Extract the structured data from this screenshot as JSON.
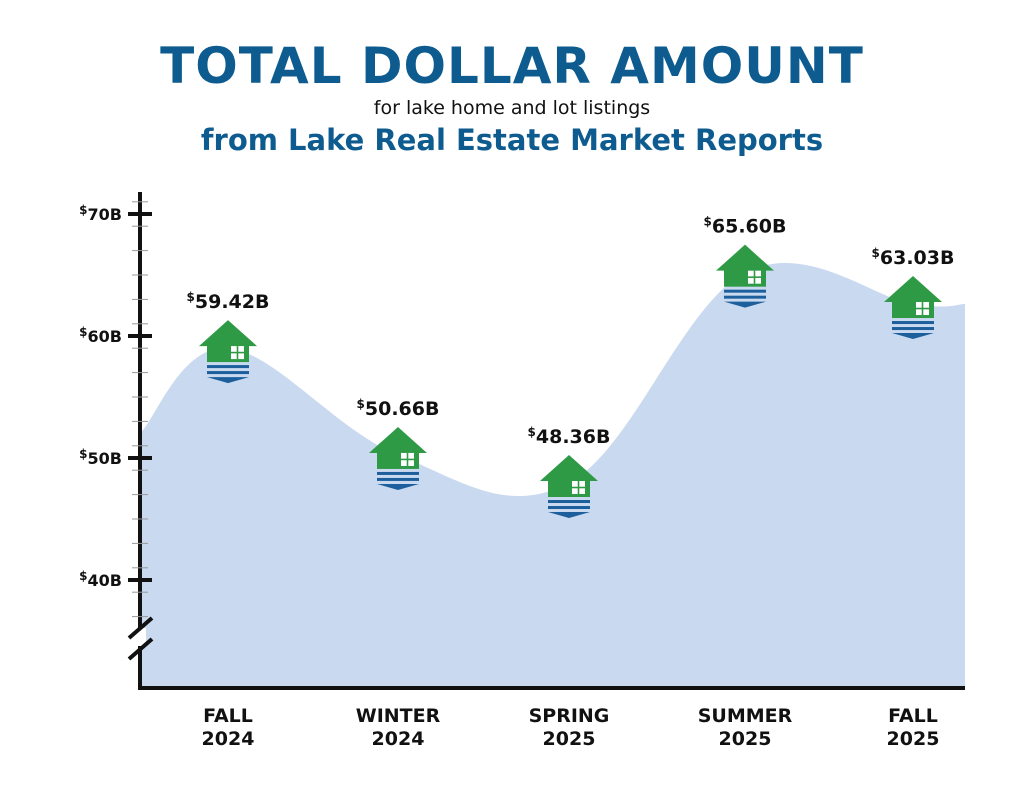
{
  "header": {
    "title": "TOTAL DOLLAR AMOUNT",
    "subtitle": "for lake home and lot listings",
    "subtitle2": "from Lake Real Estate Market Reports"
  },
  "colors": {
    "title": "#0d5b8f",
    "area_fill": "#c9d9ef",
    "house_green": "#2f9a45",
    "water_blue": "#1d5f9c",
    "axis": "#111111"
  },
  "icons": {
    "marker": "lake-house-icon"
  },
  "chart_data": {
    "type": "area",
    "title": "TOTAL DOLLAR AMOUNT",
    "categories": [
      [
        "FALL",
        "2024"
      ],
      [
        "WINTER",
        "2024"
      ],
      [
        "SPRING",
        "2025"
      ],
      [
        "SUMMER",
        "2025"
      ],
      [
        "FALL",
        "2025"
      ]
    ],
    "series": [
      {
        "values": [
          59.42,
          50.66,
          48.36,
          65.6,
          63.03
        ],
        "labels": [
          "59.42",
          "50.66",
          "48.36",
          "65.60",
          "63.03"
        ]
      }
    ],
    "label_prefix": "$",
    "label_suffix": "B",
    "y_ticks": [
      40,
      50,
      60,
      70
    ],
    "y_tick_labels": [
      "40B",
      "50B",
      "60B",
      "70B"
    ],
    "axis_break": true,
    "grid": false,
    "legend": "none"
  }
}
